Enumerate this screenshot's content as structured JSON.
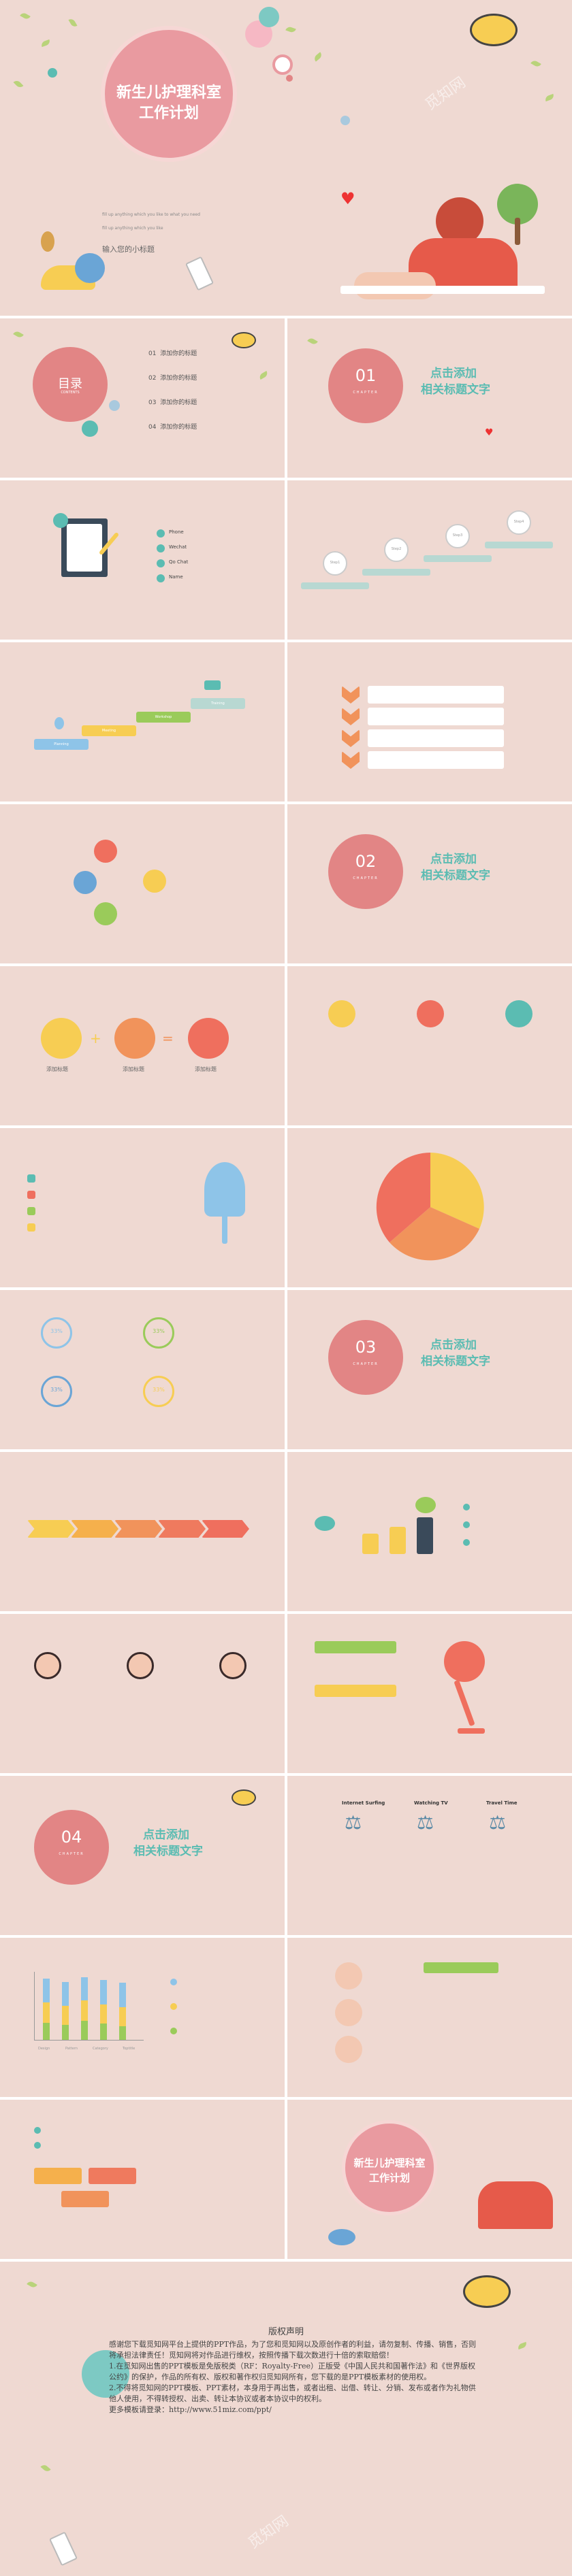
{
  "cover": {
    "title_line1": "新生儿护理科室",
    "title_line2": "工作计划",
    "en_line1": "fill up anything  which you like to what you need",
    "en_line2": "fill up anything  which you like",
    "subtitle": "输入您的小标题"
  },
  "watermark": "觅知网",
  "toc": {
    "title": "目录",
    "en": "CONTENTS",
    "items": [
      {
        "num": "01",
        "label": "添加你的标题"
      },
      {
        "num": "02",
        "label": "添加你的标题"
      },
      {
        "num": "03",
        "label": "添加你的标题"
      },
      {
        "num": "04",
        "label": "添加你的标题"
      }
    ]
  },
  "chapters": [
    {
      "num": "01",
      "en": "CHAPTER",
      "title1": "点击添加",
      "title2": "相关标题文字"
    },
    {
      "num": "02",
      "en": "CHAPTER",
      "title1": "点击添加",
      "title2": "相关标题文字"
    },
    {
      "num": "03",
      "en": "CHAPTER",
      "title1": "点击添加",
      "title2": "相关标题文字"
    },
    {
      "num": "04",
      "en": "CHAPTER",
      "title1": "点击添加",
      "title2": "相关标题文字"
    }
  ],
  "clipboard_list": [
    "Phone",
    "Wechat",
    "Qo Chat",
    "Name"
  ],
  "steps": [
    "Step1",
    "Step2",
    "Step3",
    "Step4"
  ],
  "flow_labels": [
    "Planning",
    "Meeting",
    "Workshop",
    "Training"
  ],
  "circles_slide": {
    "labels": [
      "添加标题",
      "添加标题",
      "添加标题"
    ]
  },
  "percent_rings": [
    "33%",
    "33%",
    "33%",
    "33%"
  ],
  "balance_headers": [
    "Internet Surfing",
    "Watching TV",
    "Travel Time"
  ],
  "bar_legend": [
    "Design",
    "Pattern",
    "Category",
    "Toptitle"
  ],
  "end": {
    "title_line1": "新生儿护理科室",
    "title_line2": "工作计划"
  },
  "copyright": {
    "title": "版权声明",
    "body": "感谢您下载觅知网平台上提供的PPT作品，为了您和觅知网以及原创作者的利益，请勿复制、传播、销售，否则将承担法律责任！觅知网将对作品进行维权，按照传播下载次数进行十倍的索取赔偿！",
    "p1": "1.在觅知网出售的PPT模板是免版税类（RF：Royalty-Free）正版受《中国人民共和国著作法》和《世界版权公约》的保护，作品的所有权、版权和著作权归觅知网所有，您下载的是PPT模板素材的使用权。",
    "p2": "2.不得将觅知网的PPT模板、PPT素材，本身用于再出售，或者出租、出借、转让、分销、发布或者作为礼物供他人使用，不得转授权、出卖、转让本协议或者本协议中的权利。",
    "more": "更多模板请登录：http://www.51miz.com/ppt/"
  },
  "colors": {
    "bg": "#efd9d2",
    "pink": "#e28585",
    "teal": "#5bbcb2",
    "yellow": "#f7cd53",
    "orange": "#f1935b",
    "red": "#ef6f5e",
    "green": "#9acb5a"
  }
}
